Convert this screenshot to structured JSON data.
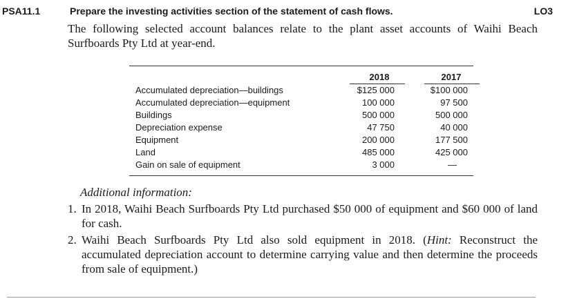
{
  "header": {
    "problem_id": "PSA11.1",
    "title": "Prepare the investing activities section of the statement of cash flows.",
    "learning_objective": "LO3"
  },
  "intro": "The following selected account balances relate to the plant asset accounts of Waihi Beach Surfboards Pty Ltd at year-end.",
  "table": {
    "columns": [
      "2018",
      "2017"
    ],
    "rows": [
      {
        "label": "Accumulated depreciation—buildings",
        "y2018": "$125 000",
        "y2017": "$100 000"
      },
      {
        "label": "Accumulated depreciation—equipment",
        "y2018": "100 000",
        "y2017": "97 500"
      },
      {
        "label": "Buildings",
        "y2018": "500 000",
        "y2017": "500 000"
      },
      {
        "label": "Depreciation expense",
        "y2018": "47 750",
        "y2017": "40 000"
      },
      {
        "label": "Equipment",
        "y2018": "200 000",
        "y2017": "177 500"
      },
      {
        "label": "Land",
        "y2018": "485 000",
        "y2017": "425 000"
      },
      {
        "label": "Gain on sale of equipment",
        "y2018": "3 000",
        "y2017": "—"
      }
    ]
  },
  "additional": {
    "heading": "Additional information:",
    "items": [
      {
        "number": "1.",
        "text": "In 2018, Waihi Beach Surfboards Pty Ltd purchased $50 000 of equipment and $60 000 of land for cash."
      },
      {
        "number": "2.",
        "text_before": "Waihi Beach Surfboards Pty Ltd also sold equipment in 2018. (",
        "hint_label": "Hint:",
        "text_after": " Reconstruct the accumulated depreciation account to determine carrying value and then determine the proceeds from sale of equipment.)"
      }
    ]
  }
}
